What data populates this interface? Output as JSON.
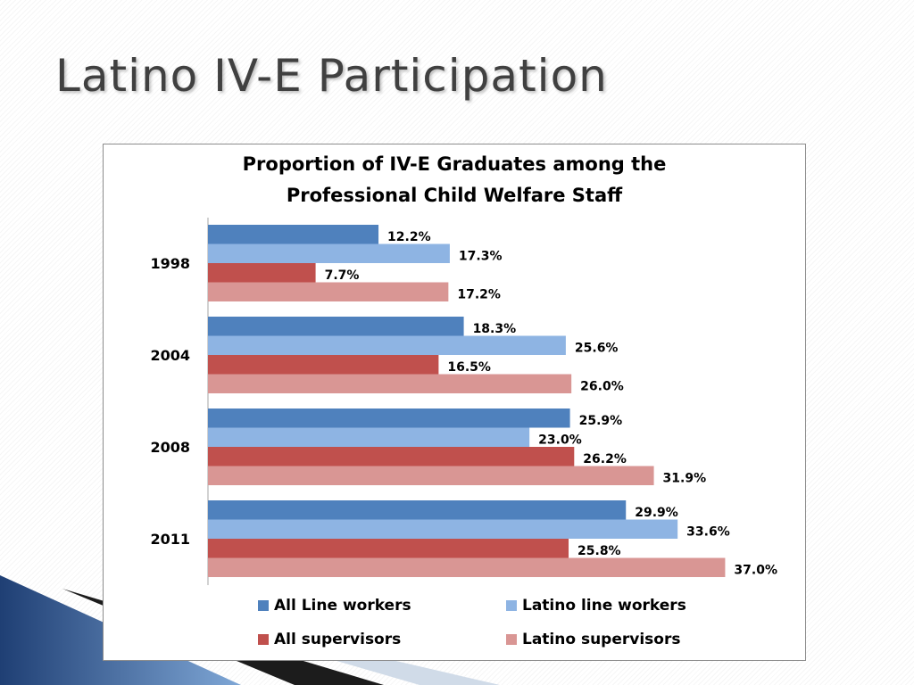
{
  "slide": {
    "title": "Latino IV-E Participation"
  },
  "chart_data": {
    "type": "bar",
    "orientation": "horizontal",
    "title": [
      "Proportion of IV-E Graduates among the",
      "Professional Child Welfare Staff"
    ],
    "categories": [
      "1998",
      "2004",
      "2008",
      "2011"
    ],
    "series": [
      {
        "name": "All Line workers",
        "values": [
          12.2,
          18.3,
          25.9,
          29.9
        ],
        "labels": [
          "12.2%",
          "18.3%",
          "25.9%",
          "29.9%"
        ]
      },
      {
        "name": "Latino line workers",
        "values": [
          17.3,
          25.6,
          23.0,
          33.6
        ],
        "labels": [
          "17.3%",
          "25.6%",
          "23.0%",
          "33.6%"
        ]
      },
      {
        "name": "All supervisors",
        "values": [
          7.7,
          16.5,
          26.2,
          25.8
        ],
        "labels": [
          "7.7%",
          "16.5%",
          "26.2%",
          "25.8%"
        ]
      },
      {
        "name": "Latino supervisors",
        "values": [
          17.2,
          26.0,
          31.9,
          37.0
        ],
        "labels": [
          "17.2%",
          "26.0%",
          "31.9%",
          "37.0%"
        ]
      }
    ],
    "colors": [
      "#4f81bd",
      "#8eb4e3",
      "#c0504d",
      "#d99694"
    ],
    "value_axis_visible": false,
    "grid": false,
    "legend_position": "bottom"
  }
}
